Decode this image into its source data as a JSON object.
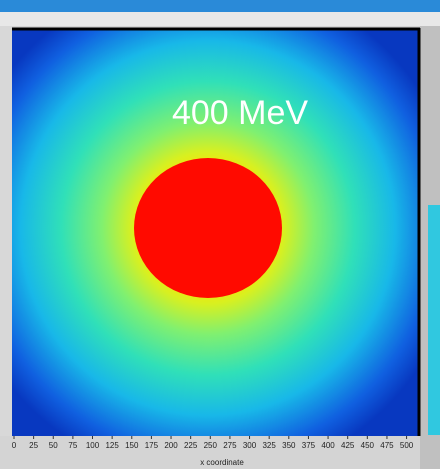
{
  "chart_data": {
    "type": "image",
    "annotation": "400 MeV",
    "xlabel": "x coordinate",
    "xlim": [
      0,
      512
    ],
    "xticks": [
      0,
      25,
      50,
      75,
      100,
      125,
      150,
      175,
      200,
      225,
      250,
      275,
      300,
      325,
      350,
      375,
      400,
      425,
      450,
      475,
      500
    ]
  }
}
